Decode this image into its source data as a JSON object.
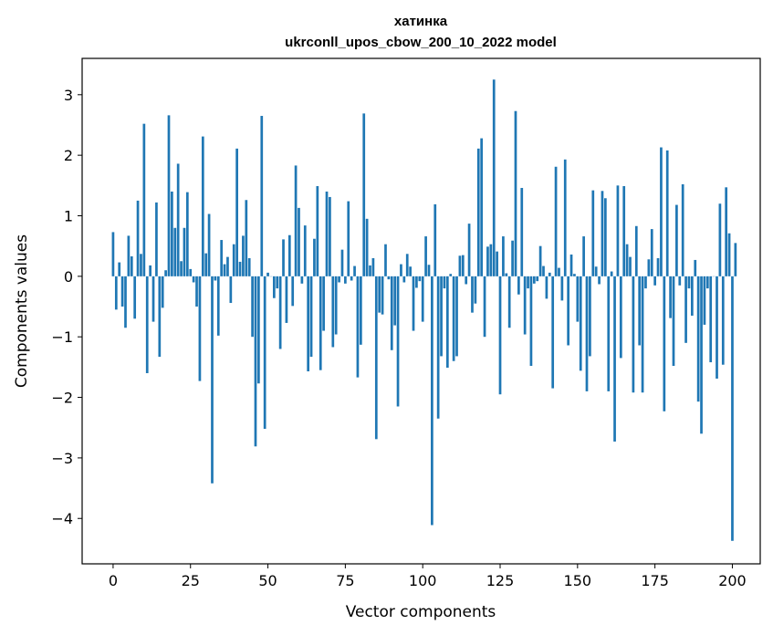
{
  "chart_data": {
    "type": "bar",
    "title": "хатинка",
    "subtitle": "ukrconll_upos_cbow_200_10_2022 model",
    "xlabel": "Vector components",
    "ylabel": "Components values",
    "xlim": [
      -10,
      209
    ],
    "ylim": [
      -4.75,
      3.6
    ],
    "xticks": [
      0,
      25,
      50,
      75,
      100,
      125,
      150,
      175,
      200
    ],
    "xtick_labels": [
      "0",
      "25",
      "50",
      "75",
      "100",
      "125",
      "150",
      "175",
      "200"
    ],
    "yticks": [
      -4,
      -3,
      -2,
      -1,
      0,
      1,
      2,
      3
    ],
    "ytick_labels": [
      "−4",
      "−3",
      "−2",
      "−1",
      "0",
      "1",
      "2",
      "3"
    ],
    "grid": false,
    "bar_color": "#1f77b4",
    "values": [
      0.73,
      -0.55,
      0.23,
      -0.5,
      -0.85,
      0.67,
      0.33,
      -0.7,
      1.25,
      0.37,
      2.52,
      -1.6,
      0.18,
      -0.75,
      1.22,
      -1.33,
      -0.52,
      0.1,
      2.66,
      1.4,
      0.8,
      1.86,
      0.25,
      0.8,
      1.39,
      0.12,
      -0.1,
      -0.5,
      -1.73,
      2.31,
      0.38,
      1.03,
      -3.42,
      -0.07,
      -0.98,
      0.6,
      0.2,
      0.32,
      -0.44,
      0.53,
      2.11,
      0.24,
      0.67,
      1.26,
      0.3,
      -1.0,
      -2.81,
      -1.77,
      2.65,
      -2.52,
      0.06,
      0.0,
      -0.36,
      -0.2,
      -1.2,
      0.61,
      -0.77,
      0.68,
      -0.49,
      1.83,
      1.13,
      -0.12,
      0.84,
      -1.57,
      -1.33,
      0.62,
      1.49,
      -1.55,
      -0.9,
      1.4,
      1.31,
      -1.17,
      -0.96,
      -0.1,
      0.44,
      -0.12,
      1.24,
      -0.07,
      0.17,
      -1.67,
      -1.13,
      2.69,
      0.95,
      0.18,
      0.3,
      -2.69,
      -0.6,
      -0.63,
      0.53,
      -0.05,
      -1.22,
      -0.81,
      -2.15,
      0.2,
      -0.1,
      0.37,
      0.16,
      -0.9,
      -0.19,
      -0.08,
      -0.75,
      0.66,
      0.19,
      -4.11,
      1.19,
      -2.35,
      -1.32,
      -0.2,
      -1.51,
      0.04,
      -1.4,
      -1.32,
      0.34,
      0.35,
      -0.13,
      0.87,
      -0.6,
      -0.45,
      2.11,
      2.28,
      -1.0,
      0.49,
      0.53,
      3.25,
      0.41,
      -1.95,
      0.66,
      0.05,
      -0.85,
      0.59,
      2.73,
      -0.3,
      1.46,
      -0.96,
      -0.2,
      -1.48,
      -0.12,
      -0.08,
      0.5,
      0.17,
      -0.37,
      0.06,
      -1.85,
      1.81,
      0.14,
      -0.4,
      1.93,
      -1.14,
      0.36,
      0.04,
      -0.75,
      -1.56,
      0.66,
      -1.9,
      -1.32,
      1.42,
      0.16,
      -0.13,
      1.41,
      1.29,
      -1.9,
      0.08,
      -2.73,
      1.5,
      -1.35,
      1.49,
      0.53,
      0.32,
      -1.92,
      0.83,
      -1.14,
      -1.92,
      -0.2,
      0.28,
      0.78,
      -0.15,
      0.3,
      2.13,
      -2.23,
      2.08,
      -0.69,
      -1.48,
      1.18,
      -0.15,
      1.52,
      -1.1,
      -0.2,
      -0.65,
      0.27,
      -2.07,
      -2.6,
      -0.8,
      -0.2,
      -1.42,
      0.0,
      -1.69,
      1.2,
      -1.46,
      1.47,
      0.71,
      -4.37,
      0.55
    ]
  }
}
